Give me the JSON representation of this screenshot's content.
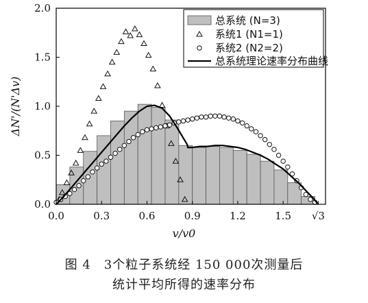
{
  "chart_data": {
    "type": "bar",
    "xlabel": "v/v0",
    "ylabel": "ΔN'/(N'Δv)",
    "xlim": [
      0,
      1.78
    ],
    "ylim": [
      0,
      2.0
    ],
    "xticks": [
      "0.0",
      "0.3",
      "0.6",
      "0.9",
      "1.2",
      "1.5",
      "√3"
    ],
    "xtick_values": [
      0,
      0.3,
      0.6,
      0.9,
      1.2,
      1.5,
      1.732
    ],
    "yticks": [
      "0.0",
      "0.5",
      "1.0",
      "1.5",
      "2.0"
    ],
    "ytick_values": [
      0,
      0.5,
      1.0,
      1.5,
      2.0
    ],
    "legend_position": "top-right",
    "series": [
      {
        "name": "总系统 (N=3)",
        "kind": "bar",
        "x": [
          0.045,
          0.135,
          0.225,
          0.315,
          0.405,
          0.495,
          0.585,
          0.675,
          0.765,
          0.855,
          0.945,
          1.035,
          1.125,
          1.215,
          1.305,
          1.395,
          1.485,
          1.575,
          1.665
        ],
        "values": [
          0.2,
          0.38,
          0.54,
          0.7,
          0.85,
          0.95,
          1.02,
          0.99,
          0.86,
          0.6,
          0.58,
          0.59,
          0.58,
          0.55,
          0.51,
          0.44,
          0.35,
          0.22,
          0.08
        ]
      },
      {
        "name": "系统1 (N1=1)",
        "kind": "scatter",
        "marker": "triangle",
        "x": [
          0.02,
          0.04,
          0.07,
          0.1,
          0.13,
          0.16,
          0.19,
          0.22,
          0.25,
          0.28,
          0.31,
          0.34,
          0.37,
          0.4,
          0.43,
          0.46,
          0.49,
          0.52,
          0.55,
          0.58,
          0.61,
          0.64,
          0.67,
          0.7,
          0.73,
          0.76,
          0.79,
          0.82,
          0.85
        ],
        "values": [
          0.05,
          0.12,
          0.22,
          0.32,
          0.42,
          0.55,
          0.68,
          0.82,
          0.95,
          1.08,
          1.2,
          1.33,
          1.45,
          1.55,
          1.66,
          1.76,
          1.72,
          1.79,
          1.73,
          1.64,
          1.52,
          1.38,
          1.21,
          1.01,
          0.8,
          0.62,
          0.44,
          0.25,
          0.05
        ]
      },
      {
        "name": "系统2 (N2=2)",
        "kind": "scatter",
        "marker": "circle",
        "x": [
          0.0,
          0.03,
          0.06,
          0.09,
          0.12,
          0.15,
          0.18,
          0.21,
          0.24,
          0.27,
          0.3,
          0.33,
          0.36,
          0.39,
          0.42,
          0.45,
          0.48,
          0.51,
          0.54,
          0.57,
          0.6,
          0.63,
          0.66,
          0.69,
          0.72,
          0.75,
          0.78,
          0.81,
          0.84,
          0.87,
          0.9,
          0.93,
          0.96,
          0.99,
          1.02,
          1.05,
          1.08,
          1.11,
          1.14,
          1.17,
          1.2,
          1.23,
          1.26,
          1.29,
          1.32,
          1.35,
          1.38,
          1.41,
          1.44,
          1.47,
          1.5,
          1.53,
          1.56,
          1.59,
          1.62,
          1.65,
          1.68,
          1.71
        ],
        "values": [
          0.02,
          0.05,
          0.08,
          0.11,
          0.15,
          0.19,
          0.24,
          0.28,
          0.33,
          0.37,
          0.41,
          0.44,
          0.48,
          0.52,
          0.56,
          0.6,
          0.64,
          0.68,
          0.71,
          0.74,
          0.76,
          0.77,
          0.78,
          0.79,
          0.8,
          0.81,
          0.83,
          0.84,
          0.85,
          0.86,
          0.87,
          0.88,
          0.89,
          0.89,
          0.9,
          0.9,
          0.9,
          0.89,
          0.88,
          0.87,
          0.85,
          0.83,
          0.8,
          0.77,
          0.74,
          0.7,
          0.66,
          0.61,
          0.56,
          0.5,
          0.44,
          0.38,
          0.31,
          0.24,
          0.17,
          0.1,
          0.05,
          0.02
        ]
      },
      {
        "name": "总系统理论速率分布曲线",
        "kind": "line",
        "x": [
          0.0,
          0.05,
          0.1,
          0.15,
          0.2,
          0.25,
          0.3,
          0.35,
          0.4,
          0.45,
          0.5,
          0.55,
          0.6,
          0.65,
          0.7,
          0.75,
          0.8,
          0.85,
          0.866,
          0.87,
          0.9,
          0.95,
          1.0,
          1.05,
          1.1,
          1.15,
          1.2,
          1.25,
          1.3,
          1.35,
          1.4,
          1.45,
          1.5,
          1.55,
          1.6,
          1.65,
          1.7,
          1.732
        ],
        "values": [
          0.0,
          0.08,
          0.17,
          0.26,
          0.35,
          0.44,
          0.53,
          0.62,
          0.71,
          0.8,
          0.88,
          0.95,
          1.0,
          1.01,
          0.98,
          0.9,
          0.78,
          0.65,
          0.61,
          0.58,
          0.58,
          0.59,
          0.59,
          0.6,
          0.6,
          0.59,
          0.58,
          0.56,
          0.53,
          0.5,
          0.46,
          0.41,
          0.36,
          0.29,
          0.22,
          0.14,
          0.06,
          0.0
        ]
      }
    ]
  },
  "caption": {
    "line1": "图 4　3个粒子系统经 150 000次测量后",
    "line2": "统计平均所得的速率分布"
  },
  "colors": {
    "bar_fill": "#bfbfbf",
    "bar_stroke": "#555555",
    "line": "#000000",
    "marker": "#111111"
  }
}
